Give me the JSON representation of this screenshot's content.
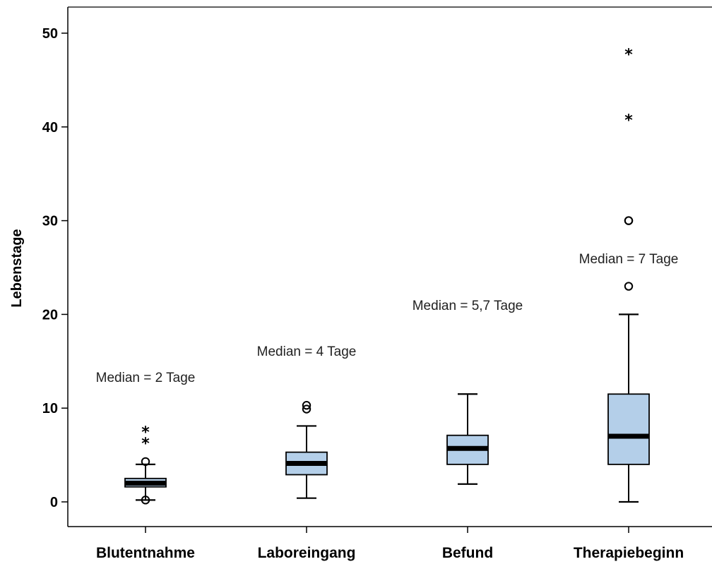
{
  "chart_data": {
    "type": "boxplot",
    "ylabel": "Lebenstage",
    "ylim": [
      -2.5,
      52
    ],
    "yticks": [
      0,
      10,
      20,
      30,
      40,
      50
    ],
    "grid": false,
    "box_color": "#b4cfe9",
    "categories": [
      "Blutentnahme",
      "Laboreingang",
      "Befund",
      "Therapiebeginn"
    ],
    "boxes": [
      {
        "category": "Blutentnahme",
        "whisker_low": 0.2,
        "q1": 1.6,
        "median": 2.0,
        "q3": 2.5,
        "whisker_high": 4.0,
        "outliers": [
          0.2,
          4.3
        ],
        "extremes": [
          6.5,
          7.7
        ],
        "annotation": "Median = 2 Tage"
      },
      {
        "category": "Laboreingang",
        "whisker_low": 0.4,
        "q1": 2.9,
        "median": 4.1,
        "q3": 5.3,
        "whisker_high": 8.1,
        "outliers": [
          9.9,
          10.3
        ],
        "extremes": [],
        "annotation": "Median = 4 Tage"
      },
      {
        "category": "Befund",
        "whisker_low": 1.9,
        "q1": 4.0,
        "median": 5.7,
        "q3": 7.1,
        "whisker_high": 11.5,
        "outliers": [],
        "extremes": [],
        "annotation": "Median = 5,7 Tage"
      },
      {
        "category": "Therapiebeginn",
        "whisker_low": 0.0,
        "q1": 4.0,
        "median": 7.0,
        "q3": 11.5,
        "whisker_high": 20.0,
        "outliers": [
          23,
          30,
          30
        ],
        "extremes": [
          41,
          48
        ],
        "annotation": "Median = 7 Tage"
      }
    ]
  }
}
